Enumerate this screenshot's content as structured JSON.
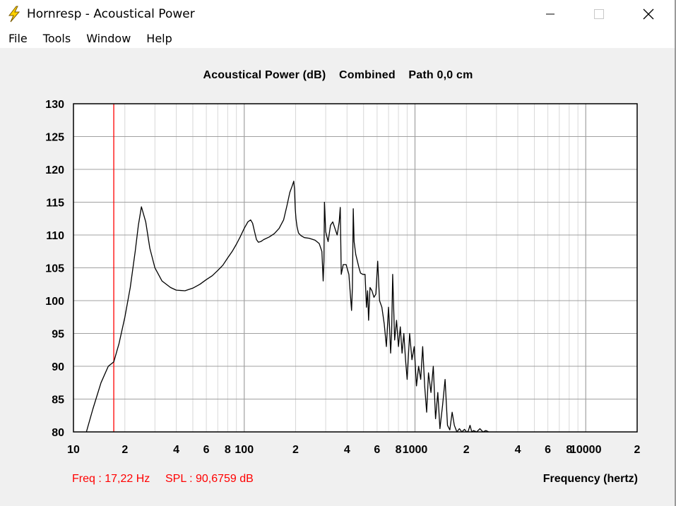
{
  "window": {
    "title": "Hornresp - Acoustical Power",
    "icon": "lightning-bolt-icon",
    "controls": [
      "minimize-icon",
      "maximize-icon",
      "close-icon"
    ]
  },
  "menu": {
    "items": [
      "File",
      "Tools",
      "Window",
      "Help"
    ]
  },
  "readout": {
    "freq": "Freq : 17,22 Hz",
    "spl": "SPL : 90,6759 dB"
  },
  "colors": {
    "curve": "#000000",
    "cursor": "#ff0000",
    "grid_major": "#a0a0a0",
    "grid_minor": "#d8d8d8"
  },
  "chart_data": {
    "type": "line",
    "title": "Acoustical Power (dB)    Combined    Path 0,0 cm",
    "xlabel": "Frequency (hertz)",
    "ylabel": "",
    "x_scale": "log",
    "xlim": [
      10,
      20000
    ],
    "ylim": [
      80,
      130
    ],
    "y_ticks": [
      130,
      125,
      120,
      115,
      110,
      105,
      100,
      95,
      90,
      85,
      80
    ],
    "x_tick_labels": [
      {
        "value": 10,
        "label": "10"
      },
      {
        "value": 20,
        "label": "2"
      },
      {
        "value": 40,
        "label": "4"
      },
      {
        "value": 60,
        "label": "6"
      },
      {
        "value": 80,
        "label": "8"
      },
      {
        "value": 100,
        "label": "100"
      },
      {
        "value": 200,
        "label": "2"
      },
      {
        "value": 400,
        "label": "4"
      },
      {
        "value": 600,
        "label": "6"
      },
      {
        "value": 800,
        "label": "8"
      },
      {
        "value": 1000,
        "label": "1000"
      },
      {
        "value": 2000,
        "label": "2"
      },
      {
        "value": 4000,
        "label": "4"
      },
      {
        "value": 6000,
        "label": "6"
      },
      {
        "value": 8000,
        "label": "8"
      },
      {
        "value": 10000,
        "label": "10000"
      },
      {
        "value": 20000,
        "label": "2"
      }
    ],
    "grid": true,
    "cursor": {
      "x": 17.22,
      "y": 90.6759
    },
    "series": [
      {
        "x": [
          11.9,
          13,
          14.5,
          16,
          17.22,
          18.5,
          20,
          21.5,
          23,
          24,
          25,
          26.5,
          28,
          30,
          33,
          37,
          40,
          45,
          50,
          55,
          60,
          65,
          70,
          75,
          80,
          85,
          90,
          95,
          100,
          105,
          109,
          112,
          115,
          118,
          121,
          125,
          130,
          140,
          150,
          160,
          170,
          178,
          185,
          191,
          195,
          197,
          199,
          201,
          204,
          208,
          215,
          225,
          240,
          260,
          275,
          285,
          290,
          293,
          295,
          300,
          310,
          320,
          330,
          340,
          350,
          355,
          360,
          365,
          370,
          380,
          395,
          410,
          425,
          430,
          435,
          440,
          450,
          460,
          470,
          480,
          495,
          510,
          520,
          528,
          535,
          545,
          560,
          575,
          590,
          605,
          620,
          640,
          660,
          680,
          700,
          710,
          720,
          730,
          740,
          760,
          780,
          800,
          820,
          840,
          860,
          880,
          900,
          930,
          960,
          990,
          1020,
          1050,
          1080,
          1110,
          1140,
          1170,
          1200,
          1240,
          1280,
          1320,
          1360,
          1400,
          1450,
          1500,
          1550,
          1600,
          1650,
          1700,
          1760,
          1820,
          1880,
          1950,
          2000,
          2050,
          2100,
          2150,
          2200,
          2300,
          2400,
          2500,
          2600,
          2700
        ],
        "values": [
          80.0,
          83.5,
          87.5,
          90.0,
          90.68,
          93.5,
          97.5,
          102.0,
          107.5,
          111.5,
          114.3,
          112.0,
          108.0,
          105.0,
          103.0,
          102.0,
          101.6,
          101.5,
          101.9,
          102.5,
          103.2,
          103.8,
          104.6,
          105.4,
          106.5,
          107.5,
          108.6,
          109.8,
          111.0,
          112.0,
          112.3,
          111.8,
          110.5,
          109.3,
          108.9,
          109.0,
          109.3,
          109.7,
          110.2,
          111.0,
          112.3,
          114.5,
          116.5,
          117.5,
          118.2,
          117.0,
          114.0,
          112.5,
          111.2,
          110.3,
          109.9,
          109.6,
          109.5,
          109.2,
          108.7,
          107.5,
          103.0,
          106.0,
          115.0,
          110.5,
          109.0,
          111.5,
          112.0,
          111.0,
          110.0,
          111.0,
          112.0,
          114.2,
          104.0,
          105.5,
          105.5,
          104.0,
          98.5,
          102.0,
          114.0,
          109.0,
          107.0,
          106.0,
          105.0,
          104.2,
          104.0,
          104.0,
          99.0,
          101.5,
          97.0,
          102.0,
          101.5,
          100.5,
          101.0,
          106.0,
          100.0,
          99.0,
          96.5,
          93.0,
          99.0,
          96.0,
          92.0,
          95.0,
          104.0,
          94.0,
          97.0,
          93.0,
          96.0,
          92.0,
          95.0,
          91.0,
          88.0,
          95.0,
          91.0,
          93.0,
          87.0,
          90.0,
          88.0,
          93.0,
          87.0,
          83.0,
          89.0,
          86.0,
          90.0,
          82.0,
          86.0,
          80.5,
          84.0,
          88.0,
          81.0,
          80.3,
          83.0,
          81.0,
          80.0,
          80.5,
          80.0,
          80.4,
          80.0,
          80.1,
          81.0,
          80.0,
          80.2,
          80.0,
          80.5,
          80.0,
          80.2,
          80.0
        ]
      }
    ]
  }
}
